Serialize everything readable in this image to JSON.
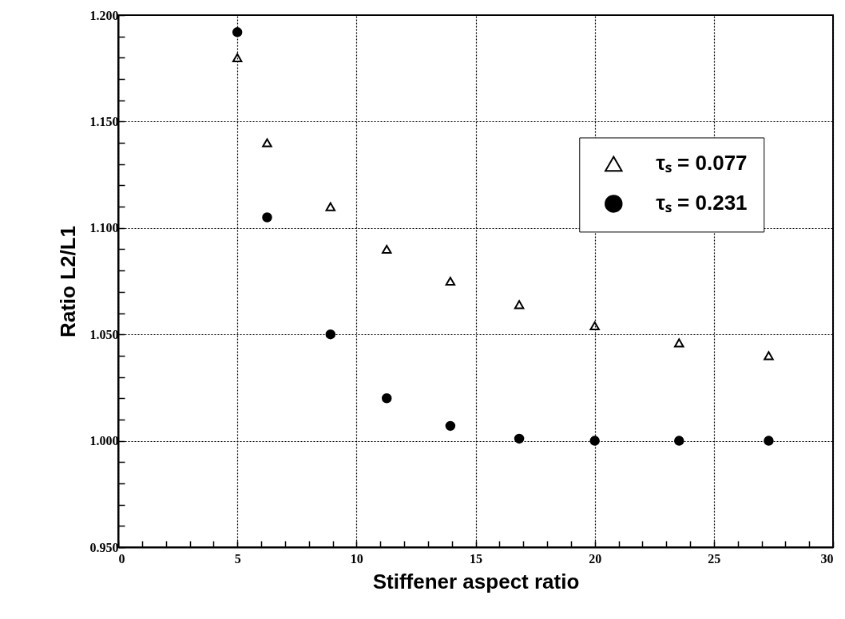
{
  "chart_data": {
    "type": "scatter",
    "xlabel": "Stiffener aspect ratio",
    "ylabel": "Ratio L2/L1",
    "x": [
      5.0,
      6.25,
      8.91,
      11.27,
      13.94,
      16.83,
      20.0,
      23.54,
      27.3
    ],
    "series": [
      {
        "name": "τₛ = 0.077",
        "color": "#000000",
        "marker": "triangle",
        "values": [
          1.18,
          1.14,
          1.11,
          1.09,
          1.075,
          1.064,
          1.054,
          1.046,
          1.04
        ]
      },
      {
        "name": "τₛ = 0.231",
        "color": "#000000",
        "marker": "circle",
        "values": [
          1.192,
          1.105,
          1.05,
          1.02,
          1.007,
          1.001,
          1.0,
          1.0,
          1.0
        ]
      }
    ],
    "xlim": [
      0,
      30
    ],
    "xticks": [
      0,
      {
        "value": 1,
        "label": null
      },
      {
        "value": 2,
        "label": null
      },
      {
        "value": 3,
        "label": null
      },
      {
        "value": 4,
        "label": null
      },
      5,
      {
        "value": 6,
        "label": null
      },
      {
        "value": 7,
        "label": null
      },
      {
        "value": 8,
        "label": null
      },
      {
        "value": 9,
        "label": null
      },
      10,
      {
        "value": 11,
        "label": null
      },
      {
        "value": 12,
        "label": null
      },
      {
        "value": 13,
        "label": null
      },
      {
        "value": 14,
        "label": null
      },
      15,
      {
        "value": 16,
        "label": null
      },
      {
        "value": 17,
        "label": null
      },
      {
        "value": 18,
        "label": null
      },
      {
        "value": 19,
        "label": null
      },
      20,
      {
        "value": 21,
        "label": null
      },
      {
        "value": 22,
        "label": null
      },
      {
        "value": 23,
        "label": null
      },
      {
        "value": 24,
        "label": null
      },
      25,
      {
        "value": 26,
        "label": null
      },
      {
        "value": 27,
        "label": null
      },
      {
        "value": 28,
        "label": null
      },
      {
        "value": 29,
        "label": null
      },
      30
    ],
    "ylim": [
      0.95,
      1.2
    ],
    "yticks": [
      {
        "value": 0.95,
        "label": "0.950"
      },
      {
        "value": 0.96,
        "label": null
      },
      {
        "value": 0.97,
        "label": null
      },
      {
        "value": 0.98,
        "label": null
      },
      {
        "value": 0.99,
        "label": null
      },
      {
        "value": 1.0,
        "label": "1.000"
      },
      {
        "value": 1.01,
        "label": null
      },
      {
        "value": 1.02,
        "label": null
      },
      {
        "value": 1.03,
        "label": null
      },
      {
        "value": 1.04,
        "label": null
      },
      {
        "value": 1.05,
        "label": "1.050"
      },
      {
        "value": 1.06,
        "label": null
      },
      {
        "value": 1.07,
        "label": null
      },
      {
        "value": 1.08,
        "label": null
      },
      {
        "value": 1.09,
        "label": null
      },
      {
        "value": 1.1,
        "label": "1.100"
      },
      {
        "value": 1.11,
        "label": null
      },
      {
        "value": 1.12,
        "label": null
      },
      {
        "value": 1.13,
        "label": null
      },
      {
        "value": 1.14,
        "label": null
      },
      {
        "value": 1.15,
        "label": "1.150"
      },
      {
        "value": 1.16,
        "label": null
      },
      {
        "value": 1.17,
        "label": null
      },
      {
        "value": 1.18,
        "label": null
      },
      {
        "value": 1.19,
        "label": null
      },
      {
        "value": 1.2,
        "label": "1.200"
      }
    ],
    "grid": true,
    "legend": "top right"
  }
}
